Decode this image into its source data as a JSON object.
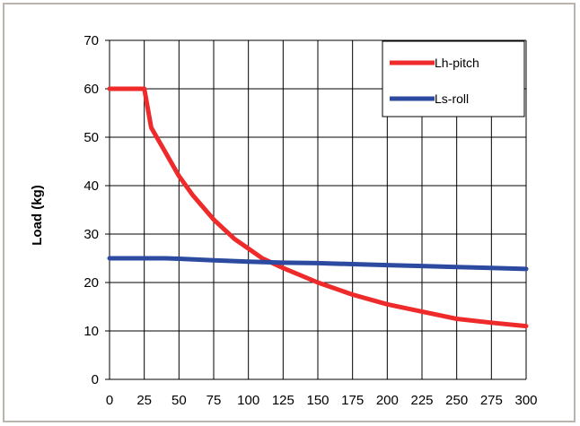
{
  "chart_data": {
    "type": "line",
    "title": "",
    "xlabel": "",
    "ylabel": "Load (kg)",
    "xlim": [
      0,
      300
    ],
    "ylim": [
      0,
      70
    ],
    "x_ticks": [
      0,
      25,
      50,
      75,
      100,
      125,
      150,
      175,
      200,
      225,
      250,
      275,
      300
    ],
    "y_ticks": [
      0,
      10,
      20,
      30,
      40,
      50,
      60,
      70
    ],
    "grid": true,
    "legend_position": "top-right",
    "series": [
      {
        "name": "Lh-pitch",
        "color": "#ee2a2a",
        "x": [
          0,
          10,
          25,
          30,
          40,
          50,
          60,
          75,
          90,
          100,
          110,
          125,
          150,
          175,
          200,
          225,
          250,
          275,
          300
        ],
        "values": [
          60,
          60,
          60,
          52,
          47,
          42,
          38,
          33,
          29,
          27,
          25,
          23,
          20,
          17.5,
          15.5,
          14,
          12.5,
          11.7,
          11
        ]
      },
      {
        "name": "Ls-roll",
        "color": "#2c4aa0",
        "x": [
          0,
          25,
          40,
          50,
          75,
          100,
          125,
          150,
          175,
          200,
          225,
          250,
          275,
          300
        ],
        "values": [
          25,
          25,
          25,
          24.9,
          24.6,
          24.3,
          24.1,
          24,
          23.8,
          23.6,
          23.4,
          23.2,
          23,
          22.8
        ]
      }
    ]
  }
}
